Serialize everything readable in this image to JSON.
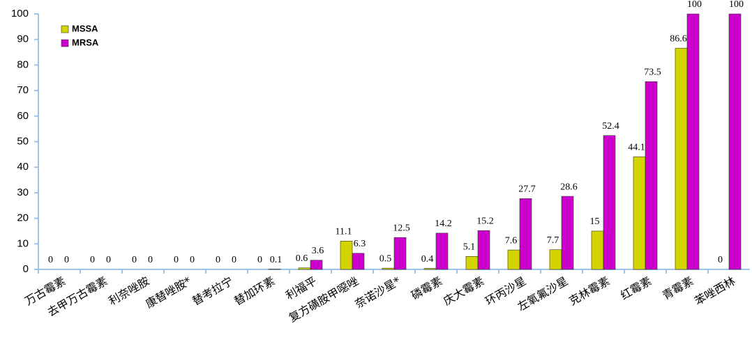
{
  "chart_data": {
    "type": "bar",
    "categories": [
      "万古霉素",
      "去甲万古霉素",
      "利奈唑胺",
      "康替唑胺*",
      "替考拉宁",
      "替加环素",
      "利福平",
      "复方磺胺甲噁唑",
      "奈诺沙星*",
      "磷霉素",
      "庆大霉素",
      "环丙沙星",
      "左氧氟沙星",
      "克林霉素",
      "红霉素",
      "青霉素",
      "苯唑西林"
    ],
    "series": [
      {
        "name": "MSSA",
        "color": "#d4d400",
        "values": [
          0,
          0,
          0,
          0,
          0,
          0,
          0.6,
          11.1,
          0.5,
          0.4,
          5.1,
          7.6,
          7.7,
          15,
          44.1,
          86.6,
          0
        ]
      },
      {
        "name": "MRSA",
        "color": "#cc00cc",
        "values": [
          0,
          0,
          0,
          0,
          0,
          0.1,
          3.6,
          6.3,
          12.5,
          14.2,
          15.2,
          27.7,
          28.6,
          52.4,
          73.5,
          100,
          100
        ]
      }
    ],
    "ylim": [
      0,
      100
    ],
    "yticks": [
      0,
      10,
      20,
      30,
      40,
      50,
      60,
      70,
      80,
      90,
      100
    ],
    "legend": "top-left"
  }
}
